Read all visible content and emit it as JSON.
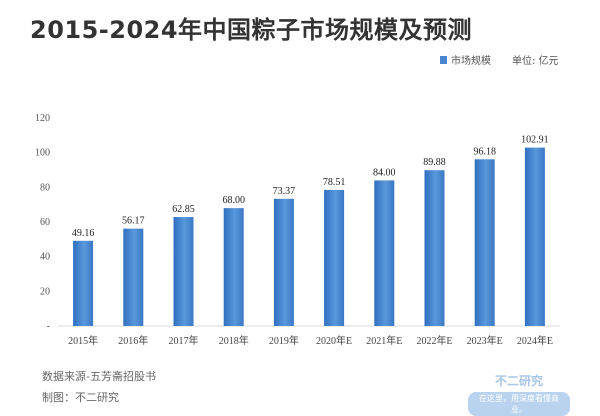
{
  "title": "2015-2024年中国粽子市场规模及预测",
  "legend": {
    "label": "市场规模",
    "color": "#4a86cf"
  },
  "unit_label": "单位: 亿元",
  "footer": {
    "source": "数据来源-五芳斋招股书",
    "maker": "制图：不二研究"
  },
  "brand": {
    "name": "不二研究",
    "slogan": "在这里，用深度看懂商业。"
  },
  "chart_data": {
    "type": "bar",
    "title": "2015-2024年中国粽子市场规模及预测",
    "xlabel": "",
    "ylabel": "",
    "unit": "单位: 亿元",
    "categories": [
      "2015年",
      "2016年",
      "2017年",
      "2018年",
      "2019年",
      "2020年E",
      "2021年E",
      "2022年E",
      "2023年E",
      "2024年E"
    ],
    "series": [
      {
        "name": "市场规模",
        "values": [
          49.16,
          56.17,
          62.85,
          68.0,
          73.37,
          78.51,
          84.0,
          89.88,
          96.18,
          102.91
        ]
      }
    ],
    "data_labels": [
      "49.16",
      "56.17",
      "62.85",
      "68.00",
      "73.37",
      "78.51",
      "84.00",
      "89.88",
      "96.18",
      "102.91"
    ],
    "yticks": [
      "-",
      "20",
      "40",
      "60",
      "80",
      "100",
      "120"
    ],
    "ylim": [
      0,
      120
    ],
    "grid": false,
    "legend_position": "top-right"
  }
}
